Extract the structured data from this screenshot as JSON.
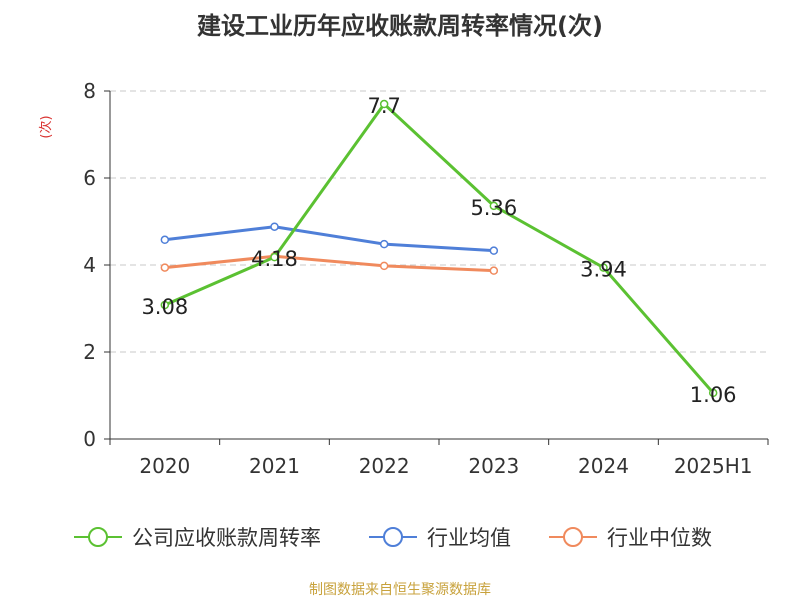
{
  "chart_data": {
    "type": "line",
    "title": "建设工业历年应收账款周转率情况(次)",
    "ylabel": "(次)",
    "categories": [
      "2020",
      "2021",
      "2022",
      "2023",
      "2024",
      "2025H1"
    ],
    "ylim": [
      0,
      8
    ],
    "yticks": [
      "0",
      "2",
      "4",
      "6",
      "8"
    ],
    "grid": true,
    "legend_position": "bottom",
    "series": [
      {
        "name": "公司应收账款周转率",
        "color": "#5bc132",
        "values": [
          3.08,
          4.18,
          7.7,
          5.36,
          3.94,
          1.06
        ],
        "labels": [
          "3.08",
          "4.18",
          "7.7",
          "5.36",
          "3.94",
          "1.06"
        ]
      },
      {
        "name": "行业均值",
        "color": "#4f7fd8",
        "values": [
          4.58,
          4.88,
          4.48,
          4.33,
          null,
          null
        ]
      },
      {
        "name": "行业中位数",
        "color": "#f08a5d",
        "values": [
          3.94,
          4.2,
          3.98,
          3.87,
          null,
          null
        ]
      }
    ],
    "source": "制图数据来自恒生聚源数据库"
  }
}
